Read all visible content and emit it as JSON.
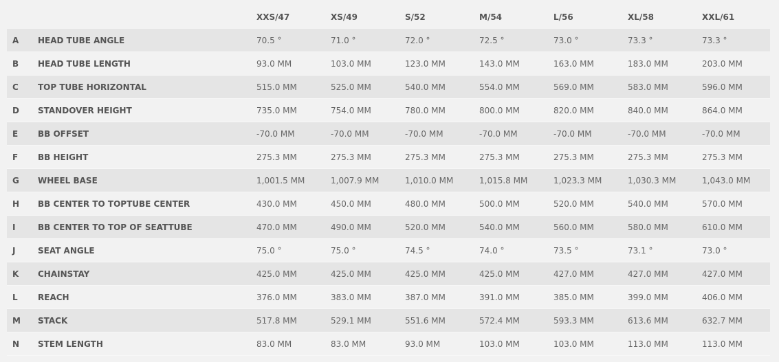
{
  "sizes": [
    "XXS/47",
    "XS/49",
    "S/52",
    "M/54",
    "L/56",
    "XL/58",
    "XXL/61"
  ],
  "rows": [
    {
      "letter": "A",
      "label": "HEAD TUBE ANGLE",
      "values": [
        "70.5 °",
        "71.0 °",
        "72.0 °",
        "72.5 °",
        "73.0 °",
        "73.3 °",
        "73.3 °"
      ]
    },
    {
      "letter": "B",
      "label": "HEAD TUBE LENGTH",
      "values": [
        "93.0 MM",
        "103.0 MM",
        "123.0 MM",
        "143.0 MM",
        "163.0 MM",
        "183.0 MM",
        "203.0 MM"
      ]
    },
    {
      "letter": "C",
      "label": "TOP TUBE HORIZONTAL",
      "values": [
        "515.0 MM",
        "525.0 MM",
        "540.0 MM",
        "554.0 MM",
        "569.0 MM",
        "583.0 MM",
        "596.0 MM"
      ]
    },
    {
      "letter": "D",
      "label": "STANDOVER HEIGHT",
      "values": [
        "735.0 MM",
        "754.0 MM",
        "780.0 MM",
        "800.0 MM",
        "820.0 MM",
        "840.0 MM",
        "864.0 MM"
      ]
    },
    {
      "letter": "E",
      "label": "BB OFFSET",
      "values": [
        "-70.0 MM",
        "-70.0 MM",
        "-70.0 MM",
        "-70.0 MM",
        "-70.0 MM",
        "-70.0 MM",
        "-70.0 MM"
      ]
    },
    {
      "letter": "F",
      "label": "BB HEIGHT",
      "values": [
        "275.3 MM",
        "275.3 MM",
        "275.3 MM",
        "275.3 MM",
        "275.3 MM",
        "275.3 MM",
        "275.3 MM"
      ]
    },
    {
      "letter": "G",
      "label": "WHEEL BASE",
      "values": [
        "1,001.5 MM",
        "1,007.9 MM",
        "1,010.0 MM",
        "1,015.8 MM",
        "1,023.3 MM",
        "1,030.3 MM",
        "1,043.0 MM"
      ]
    },
    {
      "letter": "H",
      "label": "BB CENTER TO TOPTUBE CENTER",
      "values": [
        "430.0 MM",
        "450.0 MM",
        "480.0 MM",
        "500.0 MM",
        "520.0 MM",
        "540.0 MM",
        "570.0 MM"
      ]
    },
    {
      "letter": "I",
      "label": "BB CENTER TO TOP OF SEATTUBE",
      "values": [
        "470.0 MM",
        "490.0 MM",
        "520.0 MM",
        "540.0 MM",
        "560.0 MM",
        "580.0 MM",
        "610.0 MM"
      ]
    },
    {
      "letter": "J",
      "label": "SEAT ANGLE",
      "values": [
        "75.0 °",
        "75.0 °",
        "74.5 °",
        "74.0 °",
        "73.5 °",
        "73.1 °",
        "73.0 °"
      ]
    },
    {
      "letter": "K",
      "label": "CHAINSTAY",
      "values": [
        "425.0 MM",
        "425.0 MM",
        "425.0 MM",
        "425.0 MM",
        "427.0 MM",
        "427.0 MM",
        "427.0 MM"
      ]
    },
    {
      "letter": "L",
      "label": "REACH",
      "values": [
        "376.0 MM",
        "383.0 MM",
        "387.0 MM",
        "391.0 MM",
        "385.0 MM",
        "399.0 MM",
        "406.0 MM"
      ]
    },
    {
      "letter": "M",
      "label": "STACK",
      "values": [
        "517.8 MM",
        "529.1 MM",
        "551.6 MM",
        "572.4 MM",
        "593.3 MM",
        "613.6 MM",
        "632.7 MM"
      ]
    },
    {
      "letter": "N",
      "label": "STEM LENGTH",
      "values": [
        "83.0 MM",
        "83.0 MM",
        "93.0 MM",
        "103.0 MM",
        "103.0 MM",
        "113.0 MM",
        "113.0 MM"
      ]
    }
  ]
}
